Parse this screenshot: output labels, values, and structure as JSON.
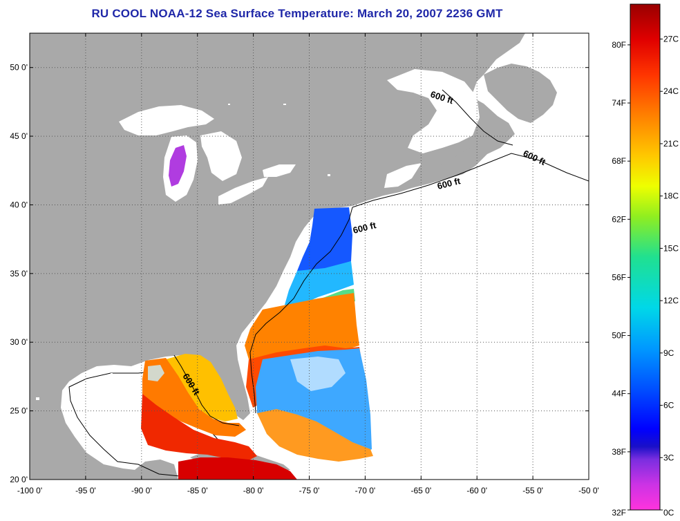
{
  "title": "RU COOL  NOAA-12  Sea Surface Temperature:  March 20, 2007 2236 GMT",
  "map": {
    "lon_range": [
      -100,
      -50
    ],
    "lat_range": [
      20,
      52.5
    ],
    "lon_ticks": [
      "-100 0'",
      "-95 0'",
      "-90 0'",
      "-85 0'",
      "-80 0'",
      "-75 0'",
      "-70 0'",
      "-65 0'",
      "-60 0'",
      "-55 0'",
      "-50 0'"
    ],
    "lat_ticks": [
      "20 0'",
      "25 0'",
      "30 0'",
      "35 0'",
      "40 0'",
      "45 0'",
      "50 0'"
    ],
    "grid": "dotted",
    "land_color": "#a9a9a9",
    "lake_color": "#ffffff",
    "isobath_labels": [
      "600 ft",
      "600 ft",
      "600 ft",
      "600 ft",
      "600 ft"
    ]
  },
  "colorbar": {
    "min_c": 0,
    "max_c": 29,
    "celsius_labels": [
      "0C",
      "3C",
      "6C",
      "9C",
      "12C",
      "15C",
      "18C",
      "21C",
      "24C",
      "27C"
    ],
    "fahrenheit_labels": [
      "32F",
      "38F",
      "44F",
      "50F",
      "56F",
      "62F",
      "68F",
      "74F",
      "80F"
    ],
    "colors": [
      "#ff33dd",
      "#a030e0",
      "#2d1fd9",
      "#0050ff",
      "#0099ff",
      "#00d8e8",
      "#20e090",
      "#90ee20",
      "#eeff00",
      "#ffc800",
      "#ff8000",
      "#ff3500",
      "#e00000",
      "#990000"
    ]
  }
}
